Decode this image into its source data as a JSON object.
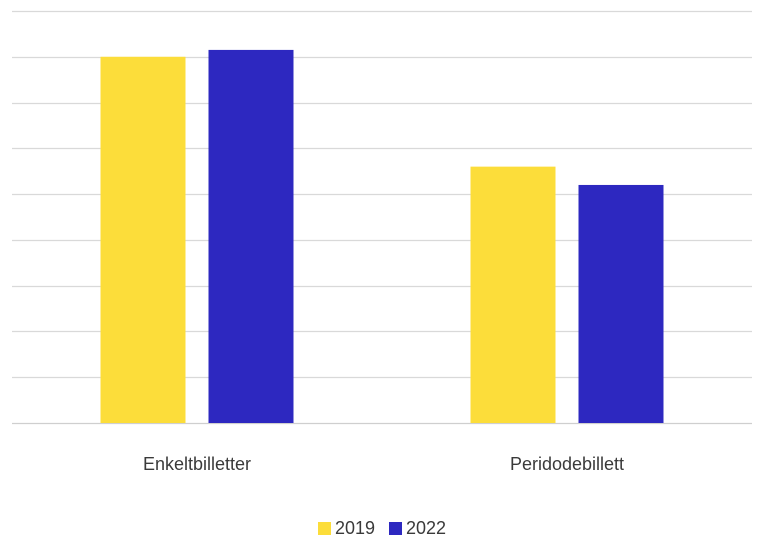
{
  "chart_data": {
    "type": "bar",
    "categories": [
      "Enkeltbilletter",
      "Peridodebillett"
    ],
    "series": [
      {
        "name": "2019",
        "color": "#FCDD3A",
        "values": [
          80,
          56
        ]
      },
      {
        "name": "2022",
        "color": "#2D28C0",
        "values": [
          81.5,
          52
        ]
      }
    ],
    "ylim": [
      0,
      90
    ],
    "ytick_step": 10,
    "show_y_tick_labels": false,
    "grid": true,
    "legend_position": "bottom-center"
  }
}
